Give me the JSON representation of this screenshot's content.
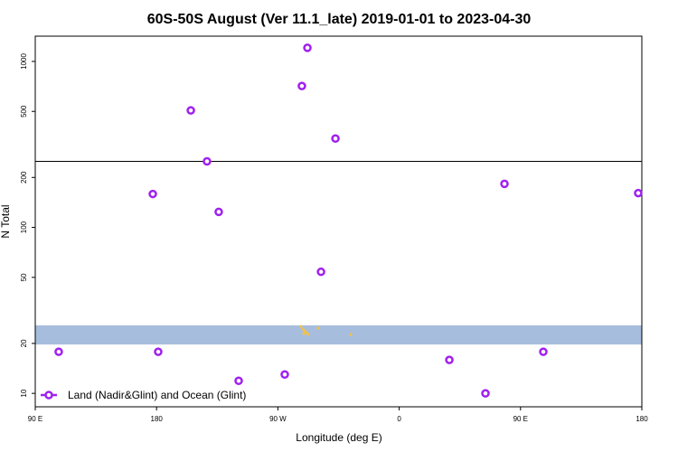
{
  "chart_data": {
    "type": "scatter",
    "title": "60S-50S August (Ver 11.1_late)   2019-01-01 to 2023-04-30",
    "xlabel": "Longitude (deg E)",
    "ylabel": "N Total",
    "x": [
      107.4,
      177.2,
      181.2,
      205.4,
      217.4,
      226.1,
      240.9,
      275.1,
      287.8,
      291.9,
      302.0,
      312.7,
      397.2,
      424.0,
      438.1,
      466.9,
      537.3
    ],
    "series": [
      {
        "name": "Land (Nadir&Glint) and Ocean (Glint)",
        "color": "#a020f0",
        "values": [
          17.8,
          159,
          17.8,
          507,
          250,
          124,
          11.9,
          13.0,
          711,
          1208,
          54,
          343,
          15.9,
          10,
          183,
          17.8,
          161
        ]
      }
    ],
    "xlim": [
      90,
      540
    ],
    "xticks": [
      {
        "value": 90,
        "label": "90 E"
      },
      180,
      {
        "value": 270,
        "label": "90 W"
      },
      {
        "value": 360,
        "label": "0"
      },
      {
        "value": 450,
        "label": "90 E"
      },
      {
        "value": 540,
        "label": "180"
      }
    ],
    "ylim": [
      8.3,
      1420
    ],
    "yticks": [
      10,
      20,
      50,
      100,
      200,
      500,
      1000
    ],
    "log_y": true,
    "reference_line": 250,
    "band": [
      19.7,
      25.7
    ],
    "band_color": "#a7bddd",
    "legend": "bottom-left"
  }
}
